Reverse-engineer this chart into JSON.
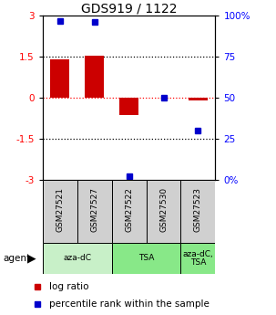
{
  "title": "GDS919 / 1122",
  "samples": [
    "GSM27521",
    "GSM27527",
    "GSM27522",
    "GSM27530",
    "GSM27523"
  ],
  "log_ratios": [
    1.4,
    1.55,
    -0.65,
    0.0,
    -0.1
  ],
  "percentile_ranks": [
    97,
    96,
    2,
    50,
    30
  ],
  "ylim_left": [
    -3,
    3
  ],
  "ylim_right": [
    0,
    100
  ],
  "yticks_left": [
    -3,
    -1.5,
    0,
    1.5,
    3
  ],
  "yticks_right": [
    0,
    25,
    50,
    75,
    100
  ],
  "ytick_labels_left": [
    "-3",
    "-1.5",
    "0",
    "1.5",
    "3"
  ],
  "ytick_labels_right": [
    "0%",
    "25",
    "50",
    "75",
    "100%"
  ],
  "dotted_lines": [
    -1.5,
    0,
    1.5
  ],
  "bar_color": "#cc0000",
  "dot_color": "#0000cc",
  "bar_width": 0.55,
  "sample_box_color": "#d0d0d0",
  "group_spans": [
    {
      "label": "aza-dC",
      "start": 0,
      "end": 1,
      "color": "#c8f0c8"
    },
    {
      "label": "TSA",
      "start": 2,
      "end": 3,
      "color": "#88e888"
    },
    {
      "label": "aza-dC,\nTSA",
      "start": 4,
      "end": 4,
      "color": "#88e888"
    }
  ],
  "legend_items": [
    {
      "label": "log ratio",
      "color": "#cc0000"
    },
    {
      "label": "percentile rank within the sample",
      "color": "#0000cc"
    }
  ]
}
